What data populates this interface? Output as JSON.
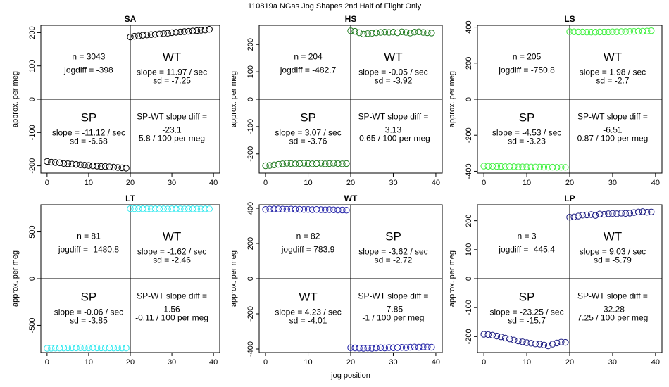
{
  "suptitle": "110819a   NGas Jog Shapes 2nd Half of Flight Only",
  "colors": {
    "SA": "#000000",
    "HS": "#1f7a1f",
    "LS": "#3df03d",
    "LT": "#33e8ee",
    "WT": "#2424a8",
    "LP": "#1a1a80"
  },
  "chart_data": [
    {
      "type": "scatter",
      "title": "SA",
      "xlabel": "",
      "ylabel": "approx. per meg",
      "xlim": [
        -1.5,
        41.5
      ],
      "ylim": [
        -222,
        222
      ],
      "xticks": [
        "0",
        "10",
        "20",
        "30",
        "40"
      ],
      "yticks": [
        "200",
        "100",
        "0",
        "-100",
        "-200"
      ],
      "series": [
        {
          "name": "SP",
          "x": [
            0,
            1,
            2,
            3,
            4,
            5,
            6,
            7,
            8,
            9,
            10,
            11,
            12,
            13,
            14,
            15,
            16,
            17,
            18,
            19
          ],
          "y": [
            -187,
            -189,
            -190,
            -191,
            -193,
            -194,
            -195,
            -196,
            -197,
            -198,
            -199,
            -200,
            -201,
            -202,
            -202,
            -203,
            -204,
            -205,
            -206,
            -207
          ]
        },
        {
          "name": "WT",
          "x": [
            20,
            21,
            22,
            23,
            24,
            25,
            26,
            27,
            28,
            29,
            30,
            31,
            32,
            33,
            34,
            35,
            36,
            37,
            38,
            39
          ],
          "y": [
            187,
            189,
            190,
            192,
            193,
            194,
            195,
            196,
            197,
            198,
            200,
            201,
            202,
            203,
            204,
            205,
            206,
            207,
            208,
            210
          ]
        }
      ],
      "annotations": {
        "n": "n = 3043",
        "jogdiff": "jogdiff = -398",
        "big_upper": "WT",
        "big_lower": "SP",
        "upper_slope": "slope = 11.97 / sec",
        "upper_sd": "sd = -7.25",
        "lower_slope": "slope = -11.12 / sec",
        "lower_sd": "sd = -6.68",
        "diff_title": "SP-WT slope diff =",
        "diff_value": "-23.1",
        "diff_permeg": "5.8 / 100 per meg"
      }
    },
    {
      "type": "scatter",
      "title": "HS",
      "xlabel": "",
      "ylabel": "approx. per meg",
      "xlim": [
        -1.5,
        41.5
      ],
      "ylim": [
        -270,
        270
      ],
      "xticks": [
        "0",
        "10",
        "20",
        "30",
        "40"
      ],
      "yticks": [
        "200",
        "100",
        "0",
        "-100",
        "-200"
      ],
      "series": [
        {
          "name": "SP",
          "x": [
            0,
            1,
            2,
            3,
            4,
            5,
            6,
            7,
            8,
            9,
            10,
            11,
            12,
            13,
            14,
            15,
            16,
            17,
            18,
            19
          ],
          "y": [
            -243,
            -242,
            -240,
            -238,
            -236,
            -234,
            -235,
            -236,
            -235,
            -234,
            -235,
            -236,
            -235,
            -234,
            -236,
            -235,
            -234,
            -235,
            -236,
            -235
          ]
        },
        {
          "name": "WT",
          "x": [
            20,
            21,
            22,
            23,
            24,
            25,
            26,
            27,
            28,
            29,
            30,
            31,
            32,
            33,
            34,
            35,
            36,
            37,
            38,
            39
          ],
          "y": [
            250,
            248,
            243,
            238,
            240,
            241,
            243,
            244,
            245,
            244,
            245,
            243,
            246,
            244,
            242,
            245,
            246,
            244,
            243,
            242
          ]
        }
      ],
      "annotations": {
        "n": "n = 204",
        "jogdiff": "jogdiff = -482.7",
        "big_upper": "WT",
        "big_lower": "SP",
        "upper_slope": "slope = -0.05 / sec",
        "upper_sd": "sd = -3.92",
        "lower_slope": "slope = 3.07 / sec",
        "lower_sd": "sd = -3.76",
        "diff_title": "SP-WT slope diff =",
        "diff_value": "3.13",
        "diff_permeg": "-0.65 / 100 per meg"
      }
    },
    {
      "type": "scatter",
      "title": "LS",
      "xlabel": "",
      "ylabel": "approx. per meg",
      "xlim": [
        -1.5,
        41.5
      ],
      "ylim": [
        -410,
        410
      ],
      "xticks": [
        "0",
        "10",
        "20",
        "30",
        "40"
      ],
      "yticks": [
        "400",
        "200",
        "0",
        "-200",
        "-400"
      ],
      "series": [
        {
          "name": "SP",
          "x": [
            0,
            1,
            2,
            3,
            4,
            5,
            6,
            7,
            8,
            9,
            10,
            11,
            12,
            13,
            14,
            15,
            16,
            17,
            18,
            19
          ],
          "y": [
            -371,
            -372,
            -372,
            -373,
            -373,
            -374,
            -374,
            -374,
            -375,
            -375,
            -375,
            -376,
            -376,
            -376,
            -377,
            -377,
            -377,
            -378,
            -378,
            -378
          ]
        },
        {
          "name": "WT",
          "x": [
            20,
            21,
            22,
            23,
            24,
            25,
            26,
            27,
            28,
            29,
            30,
            31,
            32,
            33,
            34,
            35,
            36,
            37,
            38,
            39
          ],
          "y": [
            375,
            374,
            373,
            373,
            372,
            372,
            372,
            373,
            373,
            373,
            374,
            374,
            375,
            375,
            376,
            376,
            377,
            377,
            378,
            380
          ]
        }
      ],
      "annotations": {
        "n": "n = 205",
        "jogdiff": "jogdiff = -750.8",
        "big_upper": "WT",
        "big_lower": "SP",
        "upper_slope": "slope = 1.98 / sec",
        "upper_sd": "sd = -2.7",
        "lower_slope": "slope = -4.53 / sec",
        "lower_sd": "sd = -3.23",
        "diff_title": "SP-WT slope diff =",
        "diff_value": "-6.51",
        "diff_permeg": "0.87 / 100 per meg"
      }
    },
    {
      "type": "scatter",
      "title": "LT",
      "xlabel": "",
      "ylabel": "approx. per meg",
      "xlim": [
        -1.5,
        41.5
      ],
      "ylim": [
        -790,
        790
      ],
      "xticks": [
        "0",
        "10",
        "20",
        "30",
        "40"
      ],
      "yticks": [
        "500",
        "0",
        "-500"
      ],
      "series": [
        {
          "name": "SP",
          "x": [
            0,
            1,
            2,
            3,
            4,
            5,
            6,
            7,
            8,
            9,
            10,
            11,
            12,
            13,
            14,
            15,
            16,
            17,
            18,
            19
          ],
          "y": [
            -745,
            -744,
            -743,
            -742,
            -742,
            -741,
            -741,
            -741,
            -740,
            -741,
            -741,
            -740,
            -741,
            -741,
            -742,
            -741,
            -742,
            -741,
            -742,
            -742
          ]
        },
        {
          "name": "WT",
          "x": [
            20,
            21,
            22,
            23,
            24,
            25,
            26,
            27,
            28,
            29,
            30,
            31,
            32,
            33,
            34,
            35,
            36,
            37,
            38,
            39
          ],
          "y": [
            748,
            748,
            747,
            747,
            746,
            746,
            746,
            746,
            746,
            745,
            746,
            746,
            746,
            745,
            746,
            746,
            745,
            745,
            746,
            745
          ]
        }
      ],
      "annotations": {
        "n": "n = 81",
        "jogdiff": "jogdiff = -1480.8",
        "big_upper": "WT",
        "big_lower": "SP",
        "upper_slope": "slope = -1.62 / sec",
        "upper_sd": "sd = -2.46",
        "lower_slope": "slope = -0.06 / sec",
        "lower_sd": "sd = -3.85",
        "diff_title": "SP-WT slope diff =",
        "diff_value": "1.56",
        "diff_permeg": "-0.11 / 100 per meg"
      }
    },
    {
      "type": "scatter",
      "title": "WT",
      "xlabel": "jog position",
      "ylabel": "approx. per meg",
      "xlim": [
        -1.5,
        41.5
      ],
      "ylim": [
        -420,
        420
      ],
      "xticks": [
        "0",
        "10",
        "20",
        "30",
        "40"
      ],
      "yticks": [
        "400",
        "200",
        "0",
        "-200",
        "-400"
      ],
      "series": [
        {
          "name": "SP",
          "x": [
            0,
            1,
            2,
            3,
            4,
            5,
            6,
            7,
            8,
            9,
            10,
            11,
            12,
            13,
            14,
            15,
            16,
            17,
            18,
            19
          ],
          "y": [
            393,
            395,
            396,
            396,
            395,
            394,
            395,
            394,
            394,
            393,
            393,
            392,
            393,
            392,
            391,
            392,
            391,
            390,
            390,
            389
          ]
        },
        {
          "name": "WT",
          "x": [
            20,
            21,
            22,
            23,
            24,
            25,
            26,
            27,
            28,
            29,
            30,
            31,
            32,
            33,
            34,
            35,
            36,
            37,
            38,
            39
          ],
          "y": [
            -393,
            -394,
            -395,
            -396,
            -395,
            -396,
            -394,
            -393,
            -394,
            -392,
            -393,
            -392,
            -391,
            -392,
            -390,
            -389,
            -390,
            -388,
            -389,
            -390
          ]
        }
      ],
      "annotations": {
        "n": "n = 82",
        "jogdiff": "jogdiff = 783.9",
        "big_upper": "SP",
        "big_lower": "WT",
        "upper_slope": "slope = -3.62 / sec",
        "upper_sd": "sd = -2.72",
        "lower_slope": "slope = 4.23 / sec",
        "lower_sd": "sd = -4.01",
        "diff_title": "SP-WT slope diff =",
        "diff_value": "-7.85",
        "diff_permeg": "-1 / 100 per meg"
      }
    },
    {
      "type": "scatter",
      "title": "LP",
      "xlabel": "",
      "ylabel": "approx. per meg",
      "xlim": [
        -1.5,
        41.5
      ],
      "ylim": [
        -255,
        255
      ],
      "xticks": [
        "0",
        "10",
        "20",
        "30",
        "40"
      ],
      "yticks": [
        "200",
        "100",
        "0",
        "-100",
        "-200"
      ],
      "series": [
        {
          "name": "SP",
          "x": [
            0,
            1,
            2,
            3,
            4,
            5,
            6,
            7,
            8,
            9,
            10,
            11,
            12,
            13,
            14,
            15,
            16,
            17,
            18,
            19
          ],
          "y": [
            -192,
            -193,
            -195,
            -198,
            -201,
            -205,
            -208,
            -212,
            -215,
            -218,
            -221,
            -223,
            -225,
            -226,
            -229,
            -232,
            -226,
            -222,
            -219,
            -220
          ]
        },
        {
          "name": "WT",
          "x": [
            20,
            21,
            22,
            23,
            24,
            25,
            26,
            27,
            28,
            29,
            30,
            31,
            32,
            33,
            34,
            35,
            36,
            37,
            38,
            39
          ],
          "y": [
            212,
            213,
            216,
            219,
            220,
            221,
            218,
            223,
            222,
            224,
            225,
            224,
            226,
            225,
            226,
            228,
            230,
            231,
            229,
            230
          ]
        }
      ],
      "annotations": {
        "n": "n = 3",
        "jogdiff": "jogdiff = -445.4",
        "big_upper": "WT",
        "big_lower": "SP",
        "upper_slope": "slope = 9.03 / sec",
        "upper_sd": "sd = -5.79",
        "lower_slope": "slope = -23.25 / sec",
        "lower_sd": "sd = -15.7",
        "diff_title": "SP-WT slope diff =",
        "diff_value": "-32.28",
        "diff_permeg": "7.25 / 100 per meg"
      }
    }
  ]
}
